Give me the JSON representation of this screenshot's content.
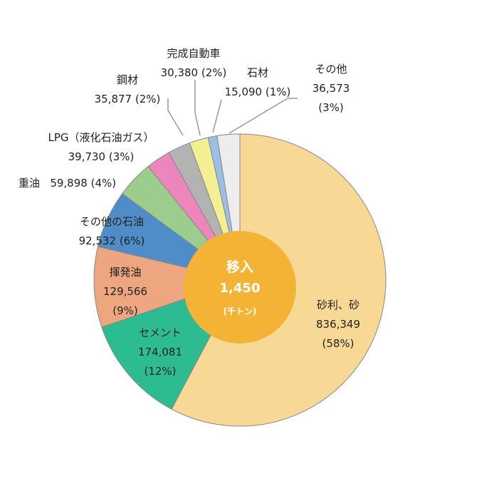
{
  "chart_data": {
    "type": "pie",
    "style": "donut",
    "center_label": {
      "title": "移入",
      "total": "1,450",
      "unit": "(千トン)"
    },
    "slices": [
      {
        "name": "砂利、砂",
        "value": "836,349",
        "pct": "(58%)",
        "share": 0.577,
        "color": "#f7d894"
      },
      {
        "name": "セメント",
        "value": "174,081",
        "pct": "(12%)",
        "share": 0.12,
        "color": "#2dbb92"
      },
      {
        "name": "揮発油",
        "value": "129,566",
        "pct": "(9%)",
        "share": 0.089,
        "color": "#eea681"
      },
      {
        "name": "その他の石油",
        "value": "92,532",
        "pct": "(6%)",
        "share": 0.064,
        "color": "#4f8dc9"
      },
      {
        "name": "重油",
        "value": "59,898",
        "pct": "(4%)",
        "share": 0.041,
        "color": "#9dcc8f"
      },
      {
        "name": "LPG（液化石油ガス）",
        "value": "39,730",
        "pct": "(3%)",
        "share": 0.027,
        "color": "#ec86bd"
      },
      {
        "name": "鋼材",
        "value": "35,877",
        "pct": "(2%)",
        "share": 0.025,
        "color": "#b3b3b3"
      },
      {
        "name": "完成自動車",
        "value": "30,380",
        "pct": "(2%)",
        "share": 0.021,
        "color": "#f5ef94"
      },
      {
        "name": "石材",
        "value": "15,090",
        "pct": "(1%)",
        "share": 0.01,
        "color": "#9cbfe6"
      },
      {
        "name": "その他",
        "value": "36,573",
        "pct": "(3%)",
        "share": 0.025,
        "color": "#ededed"
      }
    ],
    "start_angle_deg": 0,
    "direction": "clockwise"
  }
}
